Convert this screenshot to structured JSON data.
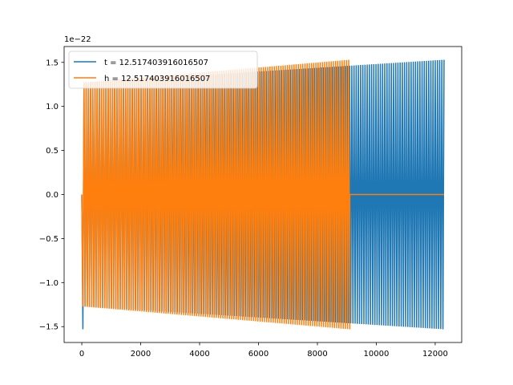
{
  "chart_data": {
    "type": "line",
    "xlim": [
      -600,
      12900
    ],
    "ylim": [
      -1.68,
      1.68
    ],
    "y_offset_label": "1e−22",
    "x_ticks": [
      0,
      2000,
      4000,
      6000,
      8000,
      10000,
      12000
    ],
    "x_tick_labels": [
      "0",
      "2000",
      "4000",
      "6000",
      "8000",
      "10000",
      "12000"
    ],
    "y_ticks": [
      -1.5,
      -1.0,
      -0.5,
      0.0,
      0.5,
      1.0,
      1.5
    ],
    "y_tick_labels": [
      "−1.5",
      "−1.0",
      "−0.5",
      "0.0",
      "0.5",
      "1.0",
      "1.5"
    ],
    "legend_position": "upper-left",
    "grid": false,
    "series": [
      {
        "name": "t = 12.517403916016507",
        "color": "#1f77b4",
        "x_range": [
          0,
          12300
        ],
        "amplitude_start": 1.27,
        "amplitude_end": 1.53,
        "initial_spike": -1.53,
        "cycles": 330
      },
      {
        "name": "h = 12.517403916016507",
        "color": "#ff7f0e",
        "x_range": [
          0,
          9100
        ],
        "amplitude_start": 1.27,
        "amplitude_end": 1.53,
        "tail_value": 0.0,
        "tail_x_end": 12300,
        "cycles": 245
      }
    ]
  }
}
